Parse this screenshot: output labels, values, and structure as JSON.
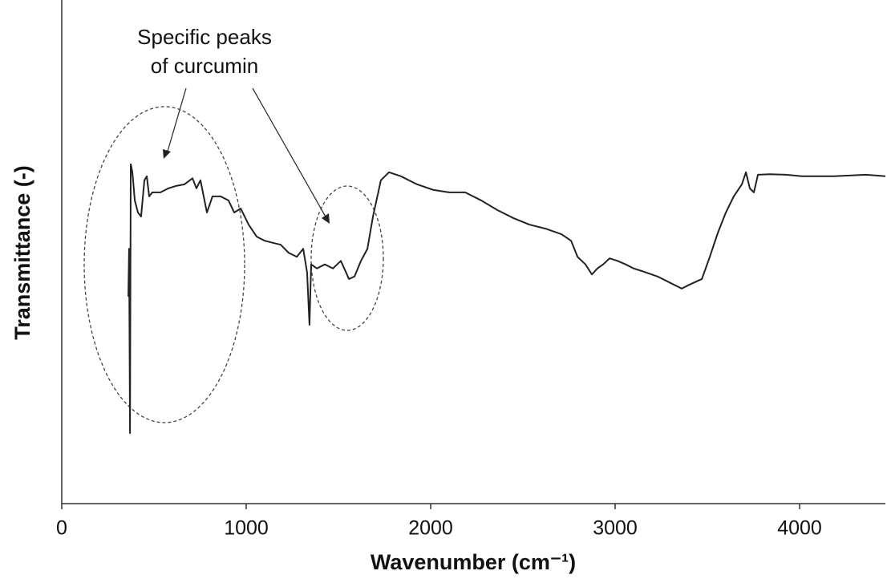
{
  "chart_data": {
    "type": "line",
    "xlabel": "Wavenumber (cm⁻¹)",
    "ylabel": "Transmittance (-)",
    "annotation": [
      "Specific peaks",
      "of curcumin"
    ],
    "xlim": [
      0,
      4465
    ],
    "xticks": [
      0,
      1000,
      2000,
      3000,
      4000
    ],
    "ylim": [
      0,
      100
    ],
    "series": [
      {
        "color": "#222222",
        "x": [
          361,
          365,
          370,
          374,
          383,
          396,
          413,
          430,
          448,
          461,
          474,
          491,
          535,
          578,
          622,
          665,
          709,
          730,
          752,
          787,
          817,
          861,
          904,
          935,
          970,
          1013,
          1057,
          1100,
          1143,
          1187,
          1230,
          1274,
          1309,
          1330,
          1343,
          1352,
          1383,
          1426,
          1470,
          1513,
          1557,
          1587,
          1622,
          1657,
          1687,
          1730,
          1774,
          1839,
          1926,
          2013,
          2100,
          2187,
          2274,
          2361,
          2448,
          2535,
          2622,
          2709,
          2761,
          2796,
          2839,
          2874,
          2904,
          2935,
          2970,
          3013,
          3057,
          3100,
          3143,
          3230,
          3317,
          3361,
          3404,
          3470,
          3513,
          3557,
          3600,
          3643,
          3687,
          3709,
          3730,
          3752,
          3774,
          3839,
          3926,
          4013,
          4187,
          4361,
          4465
        ],
        "values": [
          41.1,
          50.6,
          14.0,
          67.4,
          65.8,
          60.2,
          57.8,
          57.0,
          64.2,
          65.0,
          61.0,
          61.8,
          61.8,
          62.6,
          63.1,
          63.4,
          64.6,
          62.6,
          64.2,
          57.8,
          61.0,
          61.0,
          60.2,
          57.8,
          58.6,
          55.4,
          53.0,
          52.2,
          51.8,
          51.4,
          49.8,
          49.0,
          50.6,
          45.9,
          35.5,
          47.5,
          46.7,
          47.5,
          46.7,
          48.2,
          44.6,
          45.1,
          48.2,
          50.6,
          57.0,
          64.2,
          65.8,
          65.0,
          63.4,
          62.3,
          61.8,
          61.8,
          60.2,
          58.3,
          56.7,
          55.4,
          54.6,
          53.5,
          52.2,
          49.0,
          47.5,
          45.5,
          46.7,
          47.5,
          48.7,
          48.2,
          47.5,
          46.7,
          46.2,
          45.1,
          43.5,
          42.7,
          43.5,
          44.6,
          49.0,
          53.8,
          57.8,
          61.0,
          63.4,
          65.8,
          62.6,
          61.8,
          65.3,
          65.4,
          65.3,
          65.0,
          65.0,
          65.3,
          65.0
        ]
      }
    ]
  }
}
